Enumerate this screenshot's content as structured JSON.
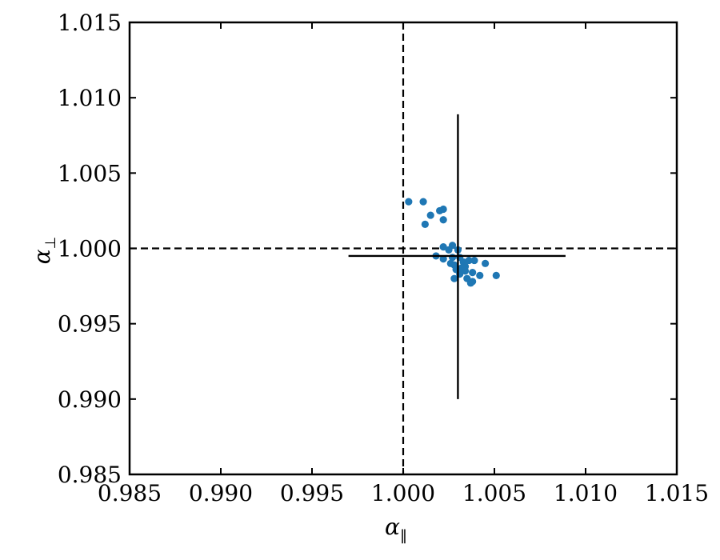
{
  "chart_data": {
    "type": "scatter",
    "xlabel": "α",
    "xlabel_sub": "‖",
    "ylabel": "α",
    "ylabel_sub": "⊥",
    "xlim": [
      0.985,
      1.015
    ],
    "ylim": [
      0.985,
      1.015
    ],
    "xticks": [
      "0.985",
      "0.990",
      "0.995",
      "1.000",
      "1.005",
      "1.010",
      "1.015"
    ],
    "yticks": [
      "0.985",
      "0.990",
      "0.995",
      "1.000",
      "1.005",
      "1.010",
      "1.015"
    ],
    "reference_lines": {
      "x": 1.0,
      "y": 1.0,
      "style": "dashed"
    },
    "errorbar": {
      "x": 1.003,
      "y": 0.9995,
      "x_range": [
        0.997,
        1.0089
      ],
      "y_range": [
        0.99,
        1.0089
      ]
    },
    "marker_color": "#1f77b4",
    "points": [
      {
        "x": 1.0003,
        "y": 1.0031
      },
      {
        "x": 1.0011,
        "y": 1.0031
      },
      {
        "x": 1.002,
        "y": 1.0025
      },
      {
        "x": 1.0022,
        "y": 1.0026
      },
      {
        "x": 1.0015,
        "y": 1.0022
      },
      {
        "x": 1.0022,
        "y": 1.0019
      },
      {
        "x": 1.0012,
        "y": 1.0016
      },
      {
        "x": 1.0022,
        "y": 1.0001
      },
      {
        "x": 1.0027,
        "y": 1.0002
      },
      {
        "x": 1.0025,
        "y": 0.9999
      },
      {
        "x": 1.003,
        "y": 0.9999
      },
      {
        "x": 1.0018,
        "y": 0.9995
      },
      {
        "x": 1.0022,
        "y": 0.9993
      },
      {
        "x": 1.0027,
        "y": 0.9994
      },
      {
        "x": 1.0031,
        "y": 0.9994
      },
      {
        "x": 1.0026,
        "y": 0.999
      },
      {
        "x": 1.0028,
        "y": 0.9989
      },
      {
        "x": 1.0033,
        "y": 0.9991
      },
      {
        "x": 1.0036,
        "y": 0.9992
      },
      {
        "x": 1.0039,
        "y": 0.9992
      },
      {
        "x": 1.0045,
        "y": 0.999
      },
      {
        "x": 1.0032,
        "y": 0.9987
      },
      {
        "x": 1.0034,
        "y": 0.9985
      },
      {
        "x": 1.0031,
        "y": 0.9983
      },
      {
        "x": 1.0038,
        "y": 0.9984
      },
      {
        "x": 1.0028,
        "y": 0.998
      },
      {
        "x": 1.0035,
        "y": 0.998
      },
      {
        "x": 1.0038,
        "y": 0.9978
      },
      {
        "x": 1.0042,
        "y": 0.9982
      },
      {
        "x": 1.0051,
        "y": 0.9982
      },
      {
        "x": 1.0037,
        "y": 0.9977
      },
      {
        "x": 1.0034,
        "y": 0.9988
      },
      {
        "x": 1.0029,
        "y": 0.9986
      }
    ]
  }
}
